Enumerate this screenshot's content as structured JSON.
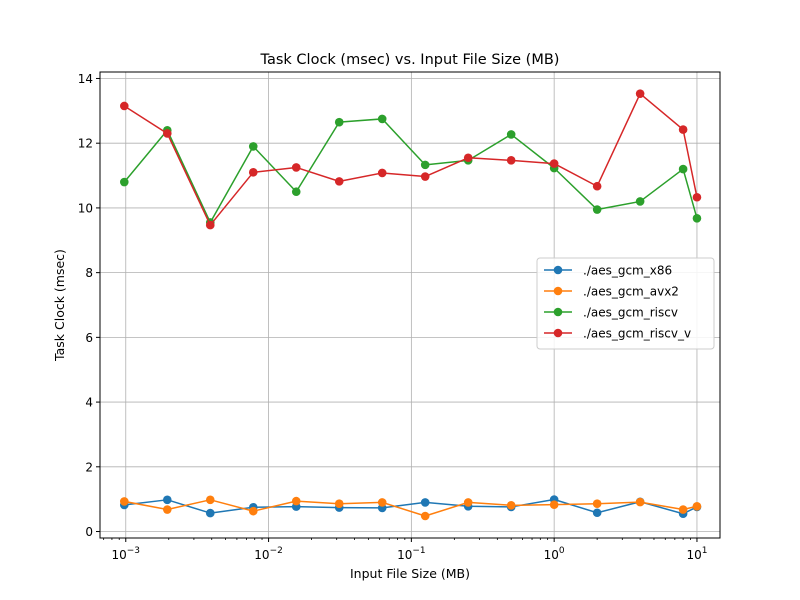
{
  "chart_data": {
    "type": "line",
    "title": "Task Clock (msec) vs. Input File Size (MB)",
    "xlabel": "Input File Size (MB)",
    "ylabel": "Task Clock (msec)",
    "x_scale": "log",
    "xlim": [
      0.00066,
      14.5
    ],
    "ylim": [
      -0.2,
      14.2
    ],
    "x_ticks": [
      0.001,
      0.01,
      0.1,
      1,
      10
    ],
    "x_tick_labels": [
      {
        "base": "10",
        "exp": "−3"
      },
      {
        "base": "10",
        "exp": "−2"
      },
      {
        "base": "10",
        "exp": "−1"
      },
      {
        "base": "10",
        "exp": "0"
      },
      {
        "base": "10",
        "exp": "1"
      }
    ],
    "y_ticks": [
      0,
      2,
      4,
      6,
      8,
      10,
      12,
      14
    ],
    "y_tick_labels": [
      "0",
      "2",
      "4",
      "6",
      "8",
      "10",
      "12",
      "14"
    ],
    "grid": true,
    "legend_position": "center-right",
    "x": [
      0.0009765625,
      0.001953125,
      0.00390625,
      0.0078125,
      0.015625,
      0.03125,
      0.0625,
      0.125,
      0.25,
      0.5,
      1,
      2,
      4,
      8,
      10
    ],
    "series": [
      {
        "name": "./aes_gcm_x86",
        "color": "#1f77b4",
        "values": [
          0.82,
          0.98,
          0.57,
          0.75,
          0.77,
          0.74,
          0.73,
          0.9,
          0.78,
          0.76,
          0.99,
          0.58,
          0.92,
          0.55,
          0.76
        ]
      },
      {
        "name": "./aes_gcm_avx2",
        "color": "#ff7f0e",
        "values": [
          0.93,
          0.68,
          0.98,
          0.63,
          0.94,
          0.86,
          0.9,
          0.48,
          0.9,
          0.81,
          0.83,
          0.86,
          0.91,
          0.68,
          0.78
        ]
      },
      {
        "name": "./aes_gcm_riscv",
        "color": "#2ca02c",
        "values": [
          10.8,
          12.4,
          9.55,
          11.9,
          10.5,
          12.65,
          12.75,
          11.33,
          11.47,
          12.27,
          11.23,
          9.95,
          10.2,
          11.2,
          9.68
        ]
      },
      {
        "name": "./aes_gcm_riscv_v",
        "color": "#d62728",
        "values": [
          13.15,
          12.3,
          9.47,
          11.1,
          11.25,
          10.82,
          11.08,
          10.97,
          11.55,
          11.47,
          11.37,
          10.67,
          13.53,
          12.42,
          10.33
        ]
      }
    ]
  }
}
